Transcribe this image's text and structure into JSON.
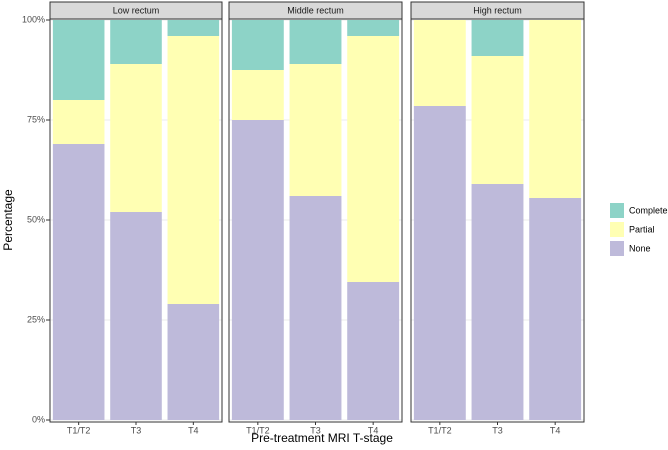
{
  "chart_data": {
    "type": "bar",
    "stacked": true,
    "y_label": "Percentage",
    "x_label": "Pre-treatment MRI T-stage",
    "facets": [
      "Low rectum",
      "Middle rectum",
      "High rectum"
    ],
    "categories": [
      "T1/T2",
      "T3",
      "T4"
    ],
    "ylim": [
      0,
      100
    ],
    "yticks": [
      {
        "value": 0,
        "label": "0%"
      },
      {
        "value": 25,
        "label": "25%"
      },
      {
        "value": 50,
        "label": "50%"
      },
      {
        "value": 75,
        "label": "75%"
      },
      {
        "value": 100,
        "label": "100%"
      }
    ],
    "grid": true,
    "series": [
      {
        "name": "Complete",
        "color": "#8dd3c7",
        "values": [
          [
            20,
            11,
            4
          ],
          [
            12.5,
            11,
            4
          ],
          [
            0,
            9,
            0
          ]
        ]
      },
      {
        "name": "Partial",
        "color": "#ffffb3",
        "values": [
          [
            11,
            37,
            67
          ],
          [
            12.5,
            33,
            61.5
          ],
          [
            21.5,
            32,
            44.5
          ]
        ]
      },
      {
        "name": "None",
        "color": "#bebada",
        "values": [
          [
            69,
            52,
            29
          ],
          [
            75,
            56,
            34.5
          ],
          [
            78.5,
            59,
            55.5
          ]
        ]
      }
    ]
  }
}
